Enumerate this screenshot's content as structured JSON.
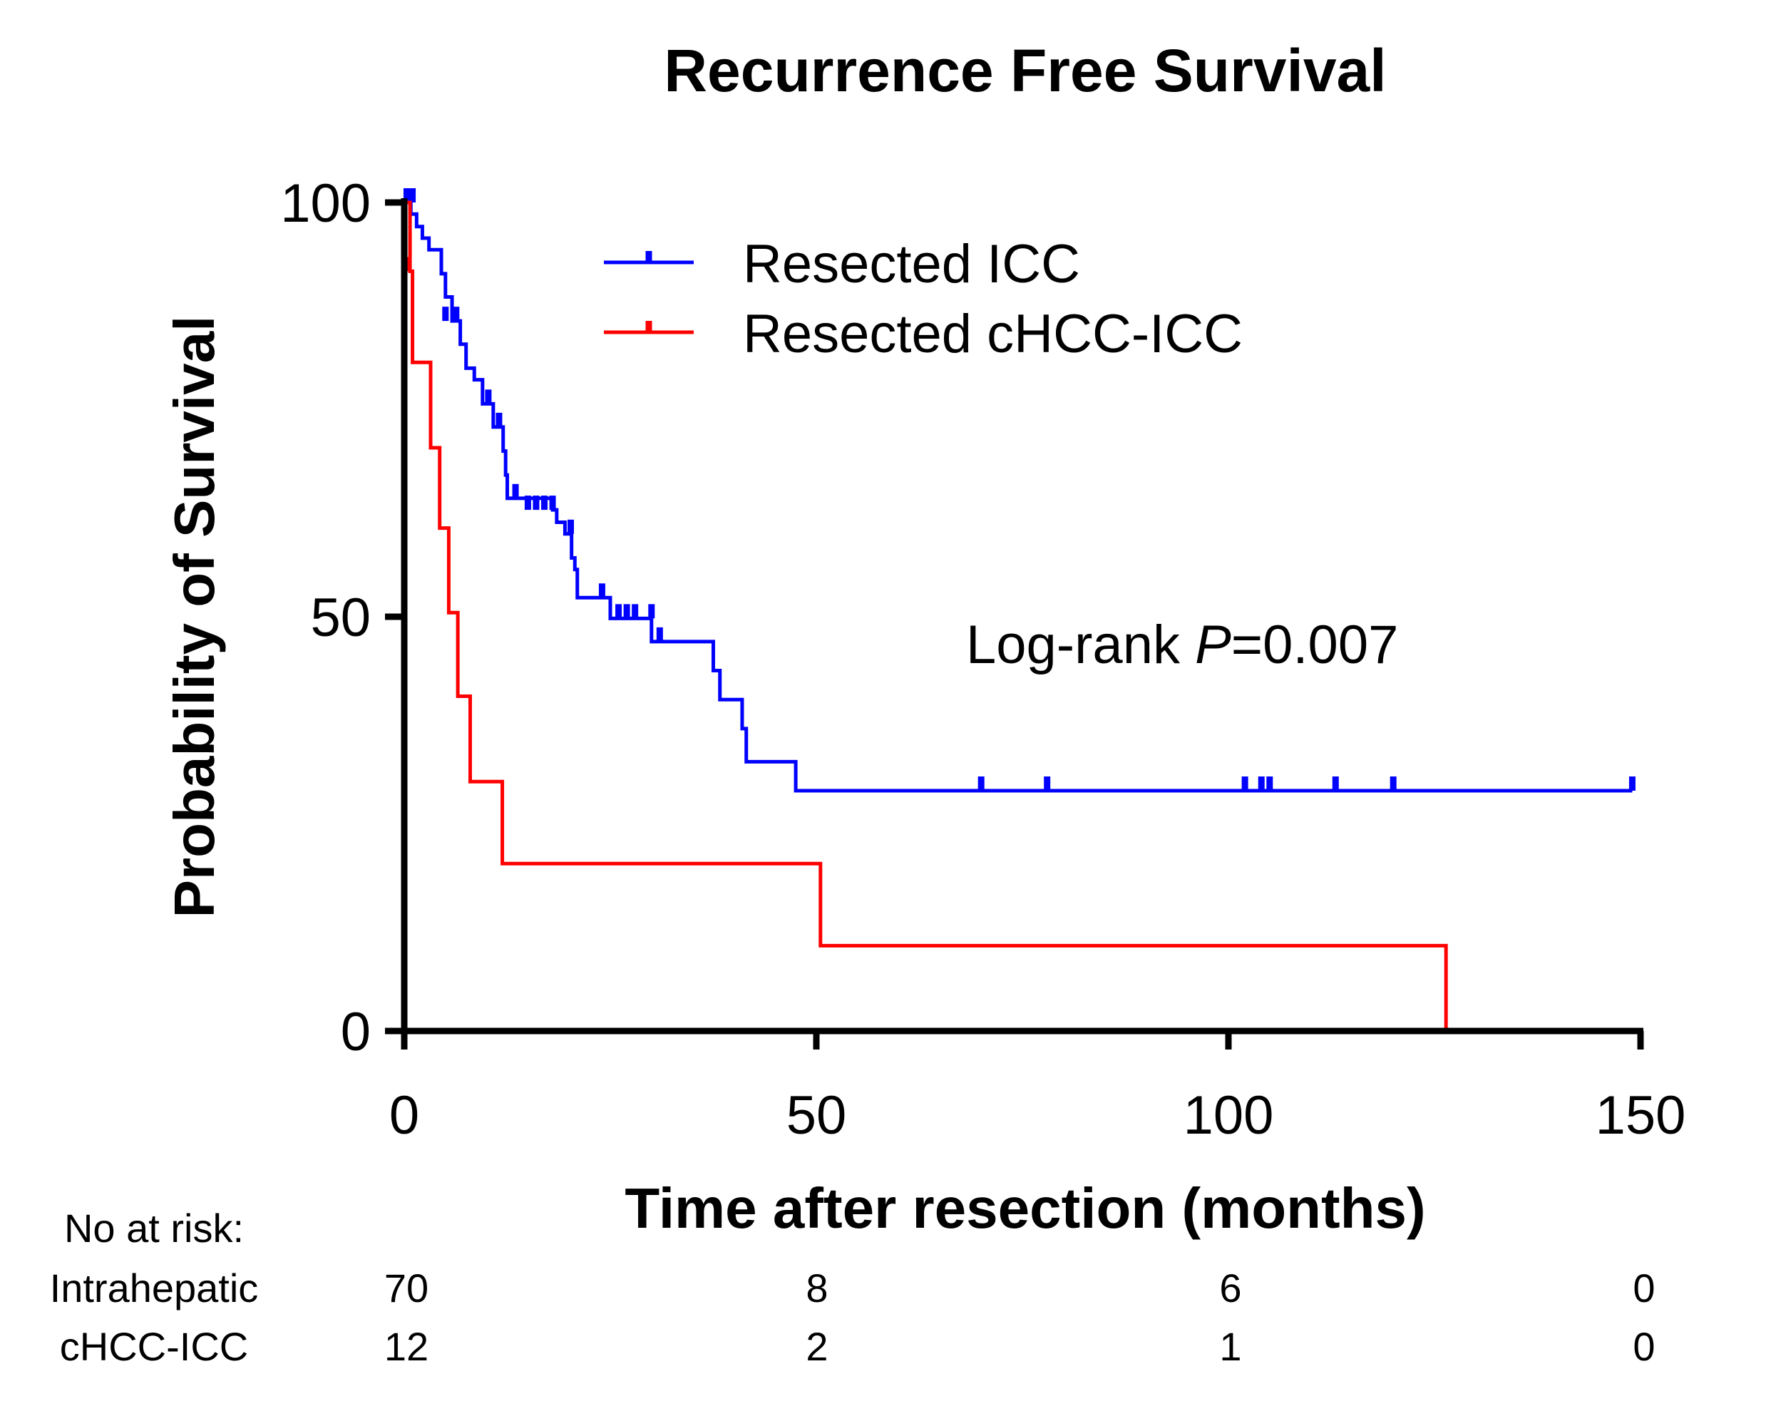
{
  "chart_data": {
    "type": "line",
    "subtype": "kaplan-meier step",
    "title": "Recurrence Free Survival",
    "xlabel": "Time after resection (months)",
    "ylabel": "Probability of Survival",
    "xlim": [
      0,
      150
    ],
    "ylim": [
      0,
      100
    ],
    "xticks": [
      "0",
      "50",
      "100",
      "150"
    ],
    "yticks": [
      "0",
      "50",
      "100"
    ],
    "grid": false,
    "legend_position": "top-right",
    "annotation": {
      "prefix": "Log-rank ",
      "p": "P",
      "suffix": "=0.007"
    },
    "series": [
      {
        "name": "Resected ICC",
        "color": "#0000ff",
        "steps": [
          [
            0,
            100
          ],
          [
            0.8,
            98.6
          ],
          [
            1.5,
            97.1
          ],
          [
            2.2,
            95.7
          ],
          [
            3,
            94.3
          ],
          [
            4.5,
            91.4
          ],
          [
            5,
            88.6
          ],
          [
            5.8,
            85.7
          ],
          [
            6.8,
            82.9
          ],
          [
            7.5,
            80
          ],
          [
            8.5,
            78.6
          ],
          [
            9.5,
            75.7
          ],
          [
            10.8,
            72.9
          ],
          [
            12,
            70
          ],
          [
            12.3,
            67.1
          ],
          [
            12.5,
            64.3
          ],
          [
            18,
            62.9
          ],
          [
            18.5,
            61.4
          ],
          [
            19.5,
            60
          ],
          [
            20.3,
            57.1
          ],
          [
            20.7,
            55.7
          ],
          [
            21,
            52.3
          ],
          [
            25,
            49.8
          ],
          [
            30,
            47
          ],
          [
            37.5,
            43.5
          ],
          [
            38.3,
            40
          ],
          [
            41,
            36.5
          ],
          [
            41.5,
            32.5
          ],
          [
            47.5,
            29
          ]
        ],
        "end": 149,
        "censored": [
          [
            0.3,
            100
          ],
          [
            1,
            100
          ],
          [
            5,
            85.7
          ],
          [
            6.3,
            85.7
          ],
          [
            10.2,
            75.7
          ],
          [
            11.5,
            72.9
          ],
          [
            13.5,
            64.3
          ],
          [
            15,
            62.9
          ],
          [
            16,
            62.9
          ],
          [
            17,
            62.9
          ],
          [
            18,
            62.9
          ],
          [
            20.2,
            60
          ],
          [
            24,
            52.3
          ],
          [
            26,
            49.8
          ],
          [
            27,
            49.8
          ],
          [
            28,
            49.8
          ],
          [
            30,
            49.8
          ],
          [
            31,
            47
          ],
          [
            70,
            29
          ],
          [
            78,
            29
          ],
          [
            102,
            29
          ],
          [
            104,
            29
          ],
          [
            105,
            29
          ],
          [
            113,
            29
          ],
          [
            120,
            29
          ],
          [
            149,
            29
          ]
        ]
      },
      {
        "name": "Resected cHCC-ICC",
        "color": "#ff0000",
        "steps": [
          [
            0,
            100
          ],
          [
            0.7,
            91.7
          ],
          [
            1,
            80.7
          ],
          [
            3.2,
            70.4
          ],
          [
            4.3,
            60.7
          ],
          [
            5.4,
            50.5
          ],
          [
            6.5,
            40.4
          ],
          [
            8,
            30.1
          ],
          [
            11.9,
            20.2
          ],
          [
            50.5,
            10.3
          ],
          [
            126.4,
            0
          ]
        ],
        "end": 126.4,
        "censored": [
          [
            0.5,
            91.7
          ]
        ]
      }
    ],
    "risk_table": {
      "title": "No at risk:",
      "times": [
        0,
        50,
        100,
        150
      ],
      "rows": [
        {
          "label": "Intrahepatic",
          "values": [
            "70",
            "8",
            "6",
            "0"
          ]
        },
        {
          "label": "cHCC-ICC",
          "values": [
            "12",
            "2",
            "1",
            "0"
          ]
        }
      ]
    }
  }
}
